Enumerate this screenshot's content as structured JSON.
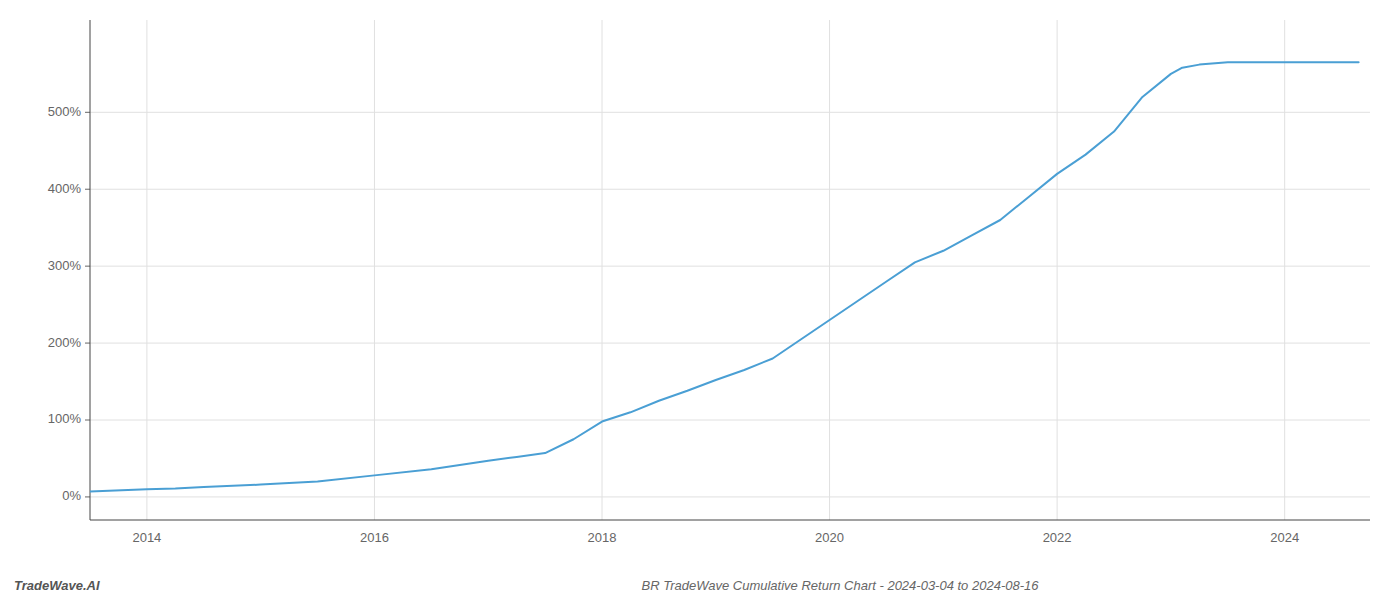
{
  "chart_data": {
    "type": "line",
    "title": "BR TradeWave Cumulative Return Chart - 2024-03-04 to 2024-08-16",
    "annotations": [
      "TradeWave.AI"
    ],
    "color": "#4a9fd4",
    "grid": true,
    "xlim": [
      2013.5,
      2024.75
    ],
    "ylim": [
      -0.3,
      6.2
    ],
    "xticks": [
      2014,
      2016,
      2018,
      2020,
      2022,
      2024
    ],
    "yticks": [
      {
        "value": 0.0,
        "label": "0%"
      },
      {
        "value": 1.0,
        "label": "100%"
      },
      {
        "value": 2.0,
        "label": "200%"
      },
      {
        "value": 3.0,
        "label": "300%"
      },
      {
        "value": 4.0,
        "label": "400%"
      },
      {
        "value": 5.0,
        "label": "500%"
      }
    ],
    "x": [
      2013.5,
      2014.0,
      2014.25,
      2014.5,
      2015.0,
      2015.5,
      2016.0,
      2016.5,
      2017.0,
      2017.25,
      2017.5,
      2017.75,
      2018.0,
      2018.25,
      2018.5,
      2018.75,
      2019.0,
      2019.25,
      2019.5,
      2019.75,
      2020.0,
      2020.25,
      2020.5,
      2020.75,
      2021.0,
      2021.25,
      2021.5,
      2021.75,
      2022.0,
      2022.25,
      2022.5,
      2022.75,
      2023.0,
      2023.1,
      2023.25,
      2023.5,
      2024.0,
      2024.3,
      2024.65
    ],
    "values": [
      0.07,
      0.1,
      0.11,
      0.13,
      0.16,
      0.2,
      0.28,
      0.36,
      0.47,
      0.52,
      0.57,
      0.75,
      0.98,
      1.1,
      1.25,
      1.38,
      1.52,
      1.65,
      1.8,
      2.05,
      2.3,
      2.55,
      2.8,
      3.05,
      3.2,
      3.4,
      3.6,
      3.9,
      4.2,
      4.45,
      4.75,
      5.2,
      5.5,
      5.58,
      5.62,
      5.65,
      5.65,
      5.65,
      5.65
    ]
  }
}
